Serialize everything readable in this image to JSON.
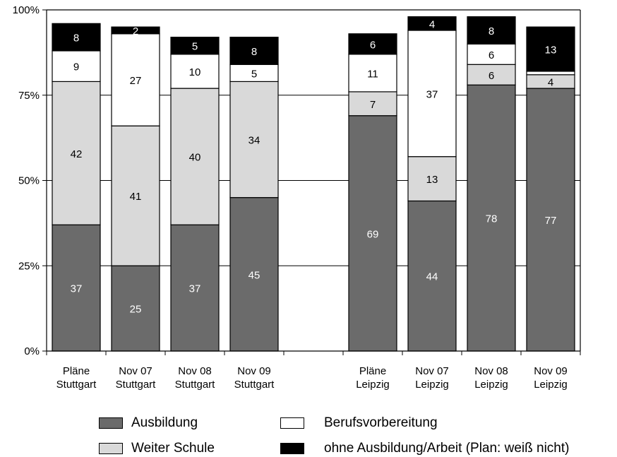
{
  "chart_data": {
    "type": "bar",
    "stacked": "percent",
    "y_ticks": [
      "0%",
      "25%",
      "50%",
      "75%",
      "100%"
    ],
    "ylim": [
      0,
      100
    ],
    "grid": true,
    "categories": [
      [
        "Pläne",
        "Stuttgart"
      ],
      [
        "Nov 07",
        "Stuttgart"
      ],
      [
        "Nov 08",
        "Stuttgart"
      ],
      [
        "Nov 09",
        "Stuttgart"
      ],
      [
        "",
        ""
      ],
      [
        "Pläne",
        "Leipzig"
      ],
      [
        "Nov 07",
        "Leipzig"
      ],
      [
        "Nov 08",
        "Leipzig"
      ],
      [
        "Nov 09",
        "Leipzig"
      ]
    ],
    "series": [
      {
        "name": "Ausbildung",
        "color": "#6b6b6b",
        "label_color": "#ffffff",
        "values": [
          37,
          25,
          37,
          45,
          null,
          69,
          44,
          78,
          77
        ]
      },
      {
        "name": "Weiter Schule",
        "color": "#d9d9d9",
        "label_color": "#000000",
        "values": [
          42,
          41,
          40,
          34,
          null,
          7,
          13,
          6,
          4
        ]
      },
      {
        "name": "Berufsvorbereitung",
        "color": "#ffffff",
        "label_color": "#000000",
        "values": [
          9,
          27,
          10,
          5,
          null,
          11,
          37,
          6,
          1
        ]
      },
      {
        "name": "ohne Ausbildung/Arbeit (Plan: weiß nicht)",
        "color": "#000000",
        "label_color": "#ffffff",
        "values": [
          8,
          2,
          5,
          8,
          null,
          6,
          4,
          8,
          13
        ]
      }
    ],
    "hidden_labels": [
      [
        2,
        8
      ]
    ]
  },
  "legend": {
    "items": [
      {
        "label": "Ausbildung",
        "color": "#6b6b6b"
      },
      {
        "label": "Berufsvorbereitung",
        "color": "#ffffff"
      },
      {
        "label": "Weiter Schule",
        "color": "#d9d9d9"
      },
      {
        "label": "ohne Ausbildung/Arbeit (Plan: weiß nicht)",
        "color": "#000000"
      }
    ]
  }
}
